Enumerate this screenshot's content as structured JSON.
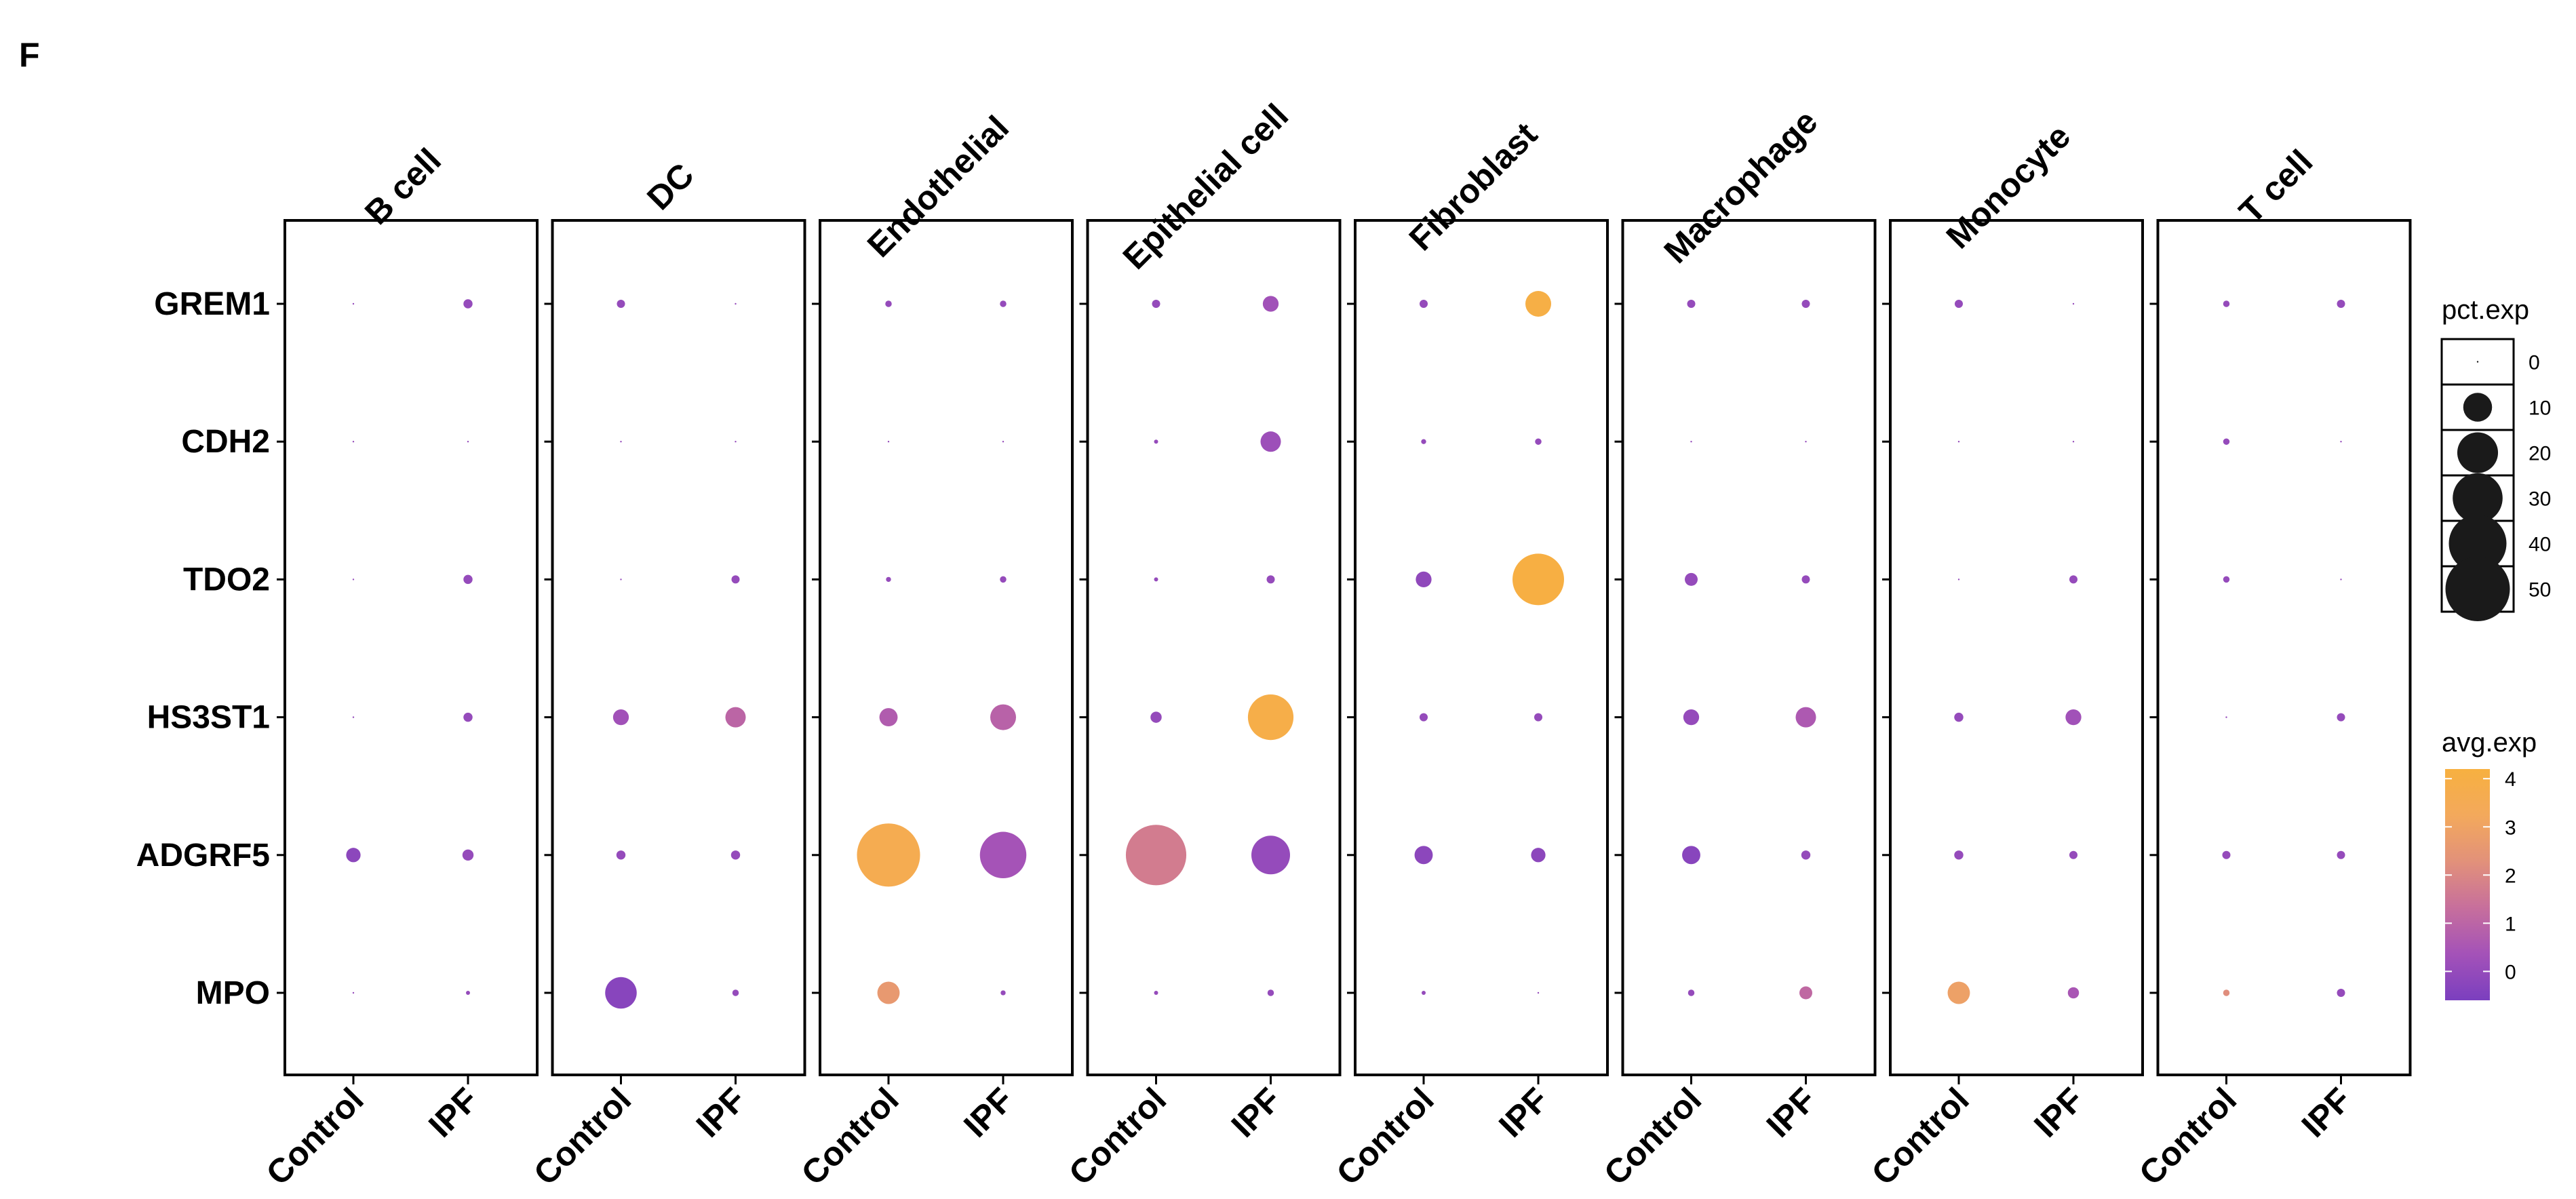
{
  "panel_label": "F",
  "chart_data": {
    "type": "scatter",
    "subtype": "dot-plot",
    "title": "",
    "xlabel": "",
    "ylabel": "",
    "facets": [
      "B cell",
      "DC",
      "Endothelial",
      "Epithelial cell",
      "Fibroblast",
      "Macrophage",
      "Monocyte",
      "T cell"
    ],
    "groups": [
      "Control",
      "IPF"
    ],
    "genes": [
      "GREM1",
      "CDH2",
      "TDO2",
      "HS3ST1",
      "ADGRF5",
      "MPO"
    ],
    "size_legend": {
      "title": "pct.exp",
      "breaks": [
        0,
        10,
        20,
        30,
        40,
        50
      ]
    },
    "color_legend": {
      "title": "avg.exp",
      "breaks": [
        0,
        1,
        2,
        3,
        4
      ],
      "range": [
        -0.6,
        4.2
      ],
      "colors": [
        "#7b3fbf",
        "#a452b8",
        "#c76f9c",
        "#e2917a",
        "#f3a95c",
        "#f7b040"
      ]
    },
    "points": {
      "B cell": {
        "Control": {
          "GREM1": [
            0,
            0.0
          ],
          "CDH2": [
            0,
            0.0
          ],
          "TDO2": [
            0,
            0.0
          ],
          "HS3ST1": [
            0,
            0.0
          ],
          "ADGRF5": [
            2.5,
            -0.2
          ],
          "MPO": [
            0,
            0.0
          ]
        },
        "IPF": {
          "GREM1": [
            1,
            0.0
          ],
          "CDH2": [
            0,
            0.0
          ],
          "TDO2": [
            1,
            0.0
          ],
          "HS3ST1": [
            1,
            0.0
          ],
          "ADGRF5": [
            1.5,
            0.0
          ],
          "MPO": [
            0.2,
            0.0
          ]
        }
      },
      "DC": {
        "Control": {
          "GREM1": [
            0.8,
            0.0
          ],
          "CDH2": [
            0,
            0.0
          ],
          "TDO2": [
            0,
            0.0
          ],
          "HS3ST1": [
            3,
            0.3
          ],
          "ADGRF5": [
            1,
            0.0
          ],
          "MPO": [
            12,
            -0.3
          ]
        },
        "IPF": {
          "GREM1": [
            0,
            0.0
          ],
          "CDH2": [
            0,
            0.0
          ],
          "TDO2": [
            0.8,
            0.0
          ],
          "HS3ST1": [
            5,
            1.0
          ],
          "ADGRF5": [
            1,
            0.0
          ],
          "MPO": [
            0.5,
            0.0
          ]
        }
      },
      "Endothelial": {
        "Control": {
          "GREM1": [
            0.5,
            0.0
          ],
          "CDH2": [
            0,
            0.0
          ],
          "TDO2": [
            0.3,
            0.0
          ],
          "HS3ST1": [
            4,
            0.7
          ],
          "ADGRF5": [
            48,
            3.6
          ],
          "MPO": [
            6,
            2.6
          ]
        },
        "IPF": {
          "GREM1": [
            0.5,
            0.0
          ],
          "CDH2": [
            0,
            0.0
          ],
          "TDO2": [
            0.5,
            0.0
          ],
          "HS3ST1": [
            8,
            0.9
          ],
          "ADGRF5": [
            26,
            0.4
          ],
          "MPO": [
            0.3,
            0.0
          ]
        }
      },
      "Epithelial cell": {
        "Control": {
          "GREM1": [
            0.8,
            0.0
          ],
          "CDH2": [
            0.2,
            0.0
          ],
          "TDO2": [
            0.2,
            0.0
          ],
          "HS3ST1": [
            1.5,
            0.0
          ],
          "ADGRF5": [
            44,
            1.7
          ],
          "MPO": [
            0.2,
            0.0
          ]
        },
        "IPF": {
          "GREM1": [
            3,
            0.3
          ],
          "CDH2": [
            5,
            0.2
          ],
          "TDO2": [
            0.8,
            0.0
          ],
          "HS3ST1": [
            25,
            3.9
          ],
          "ADGRF5": [
            18,
            0.0
          ],
          "MPO": [
            0.5,
            0.0
          ]
        }
      },
      "Fibroblast": {
        "Control": {
          "GREM1": [
            0.8,
            0.0
          ],
          "CDH2": [
            0.3,
            0.0
          ],
          "TDO2": [
            3,
            -0.1
          ],
          "HS3ST1": [
            0.8,
            0.0
          ],
          "ADGRF5": [
            4,
            -0.2
          ],
          "MPO": [
            0.2,
            0.0
          ]
        },
        "IPF": {
          "GREM1": [
            8,
            4.0
          ],
          "CDH2": [
            0.5,
            0.0
          ],
          "TDO2": [
            32,
            4.1
          ],
          "HS3ST1": [
            0.8,
            0.0
          ],
          "ADGRF5": [
            2.5,
            -0.2
          ],
          "MPO": [
            0,
            0.0
          ]
        }
      },
      "Macrophage": {
        "Control": {
          "GREM1": [
            0.8,
            0.0
          ],
          "CDH2": [
            0,
            0.0
          ],
          "TDO2": [
            2,
            0.0
          ],
          "HS3ST1": [
            3,
            0.0
          ],
          "ADGRF5": [
            4,
            -0.3
          ],
          "MPO": [
            0.5,
            0.0
          ]
        },
        "IPF": {
          "GREM1": [
            0.8,
            0.0
          ],
          "CDH2": [
            0,
            0.0
          ],
          "TDO2": [
            0.8,
            0.0
          ],
          "HS3ST1": [
            5,
            0.6
          ],
          "ADGRF5": [
            1,
            0.0
          ],
          "MPO": [
            2,
            1.1
          ]
        }
      },
      "Monocyte": {
        "Control": {
          "GREM1": [
            0.8,
            0.0
          ],
          "CDH2": [
            0,
            0.0
          ],
          "TDO2": [
            0,
            0.0
          ],
          "HS3ST1": [
            1,
            0.0
          ],
          "ADGRF5": [
            1,
            0.0
          ],
          "MPO": [
            6,
            2.9
          ]
        },
        "IPF": {
          "GREM1": [
            0,
            0.0
          ],
          "CDH2": [
            0,
            0.0
          ],
          "TDO2": [
            0.8,
            0.0
          ],
          "HS3ST1": [
            3,
            0.3
          ],
          "ADGRF5": [
            0.8,
            0.0
          ],
          "MPO": [
            1.5,
            0.5
          ]
        }
      },
      "T cell": {
        "Control": {
          "GREM1": [
            0.5,
            0.0
          ],
          "CDH2": [
            0.5,
            0.0
          ],
          "TDO2": [
            0.5,
            0.0
          ],
          "HS3ST1": [
            0,
            0.0
          ],
          "ADGRF5": [
            0.8,
            0.0
          ],
          "MPO": [
            0.5,
            2.2
          ]
        },
        "IPF": {
          "GREM1": [
            0.8,
            0.0
          ],
          "CDH2": [
            0,
            0.0
          ],
          "TDO2": [
            0,
            0.0
          ],
          "HS3ST1": [
            0.8,
            0.0
          ],
          "ADGRF5": [
            0.8,
            0.0
          ],
          "MPO": [
            0.8,
            0.0
          ]
        }
      }
    },
    "grid": false,
    "legend_position": "right"
  }
}
